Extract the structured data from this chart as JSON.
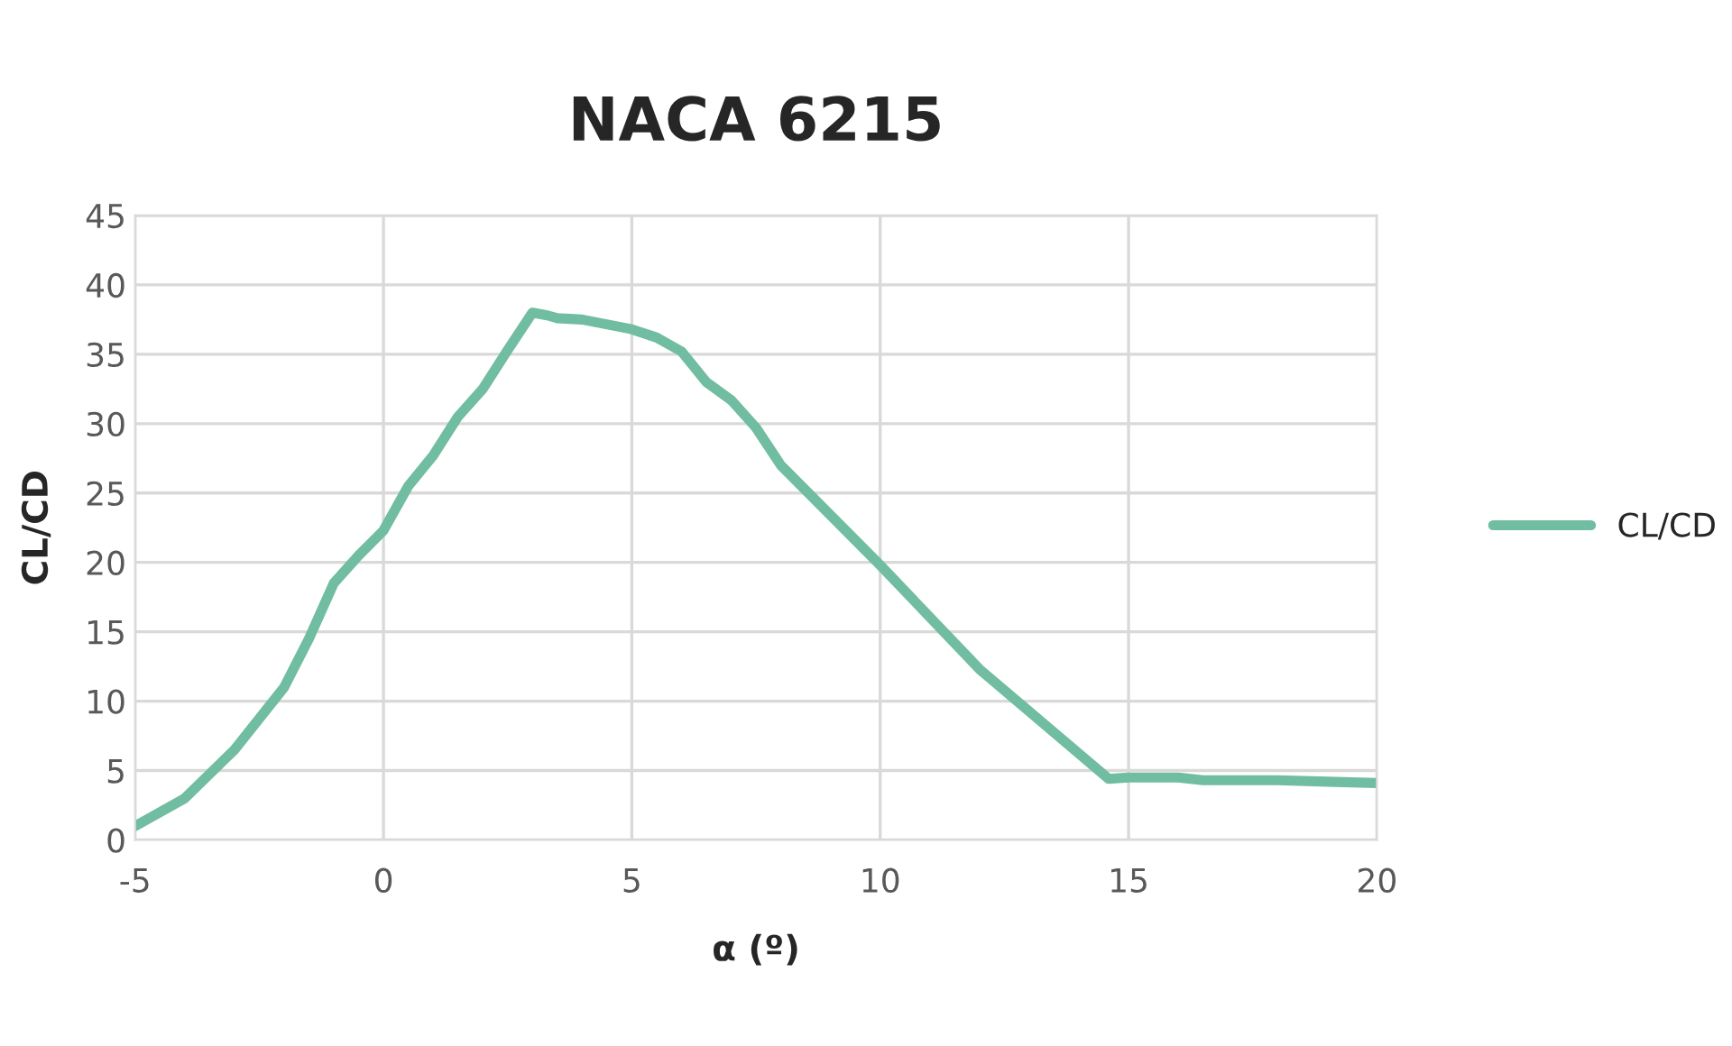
{
  "chart_data": {
    "type": "line",
    "title": "NACA 6215",
    "xlabel": "α (º)",
    "ylabel": "CL/CD",
    "x": [
      -5,
      -4,
      -3,
      -2,
      -1.5,
      -1,
      -0.5,
      0,
      0.5,
      1,
      1.5,
      2,
      2.5,
      3,
      3.3,
      3.5,
      4,
      5,
      5.5,
      6,
      6.5,
      7,
      7.5,
      8,
      10,
      12,
      14.6,
      15,
      16,
      16.5,
      17,
      18,
      19,
      20
    ],
    "series": [
      {
        "name": "CL/CD",
        "color": "#70bda1",
        "values": [
          1.0,
          3.0,
          6.5,
          11.0,
          14.5,
          18.5,
          20.5,
          22.3,
          25.5,
          27.7,
          30.5,
          32.5,
          35.3,
          38.0,
          37.8,
          37.6,
          37.5,
          36.8,
          36.2,
          35.2,
          33.0,
          31.7,
          29.7,
          27.0,
          19.8,
          12.3,
          4.4,
          4.5,
          4.5,
          4.3,
          4.3,
          4.3,
          4.2,
          4.1
        ]
      }
    ],
    "xlim": [
      -5,
      20
    ],
    "xticks": [
      -5,
      0,
      5,
      10,
      15,
      20
    ],
    "ylim": [
      0,
      45
    ],
    "yticks": [
      0,
      5,
      10,
      15,
      20,
      25,
      30,
      35,
      40,
      45
    ],
    "grid": true,
    "legend": "right",
    "marker": "none",
    "line_style": "solid"
  }
}
